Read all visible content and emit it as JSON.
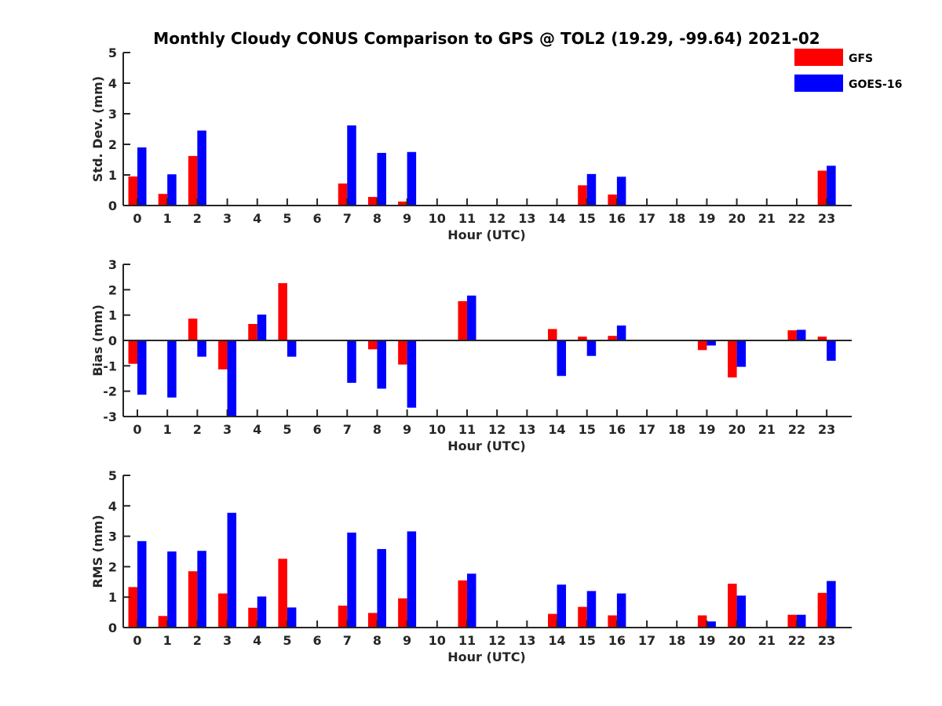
{
  "chart_data": {
    "type": "bar",
    "title": "Monthly Cloudy CONUS Comparison to GPS @ TOL2 (19.29, -99.64) 2021-02",
    "legend": {
      "placement": "top-right",
      "entries": [
        "GFS",
        "GOES-16"
      ]
    },
    "colors": {
      "GFS": "#ff0000",
      "GOES-16": "#0000ff"
    },
    "categories": [
      "0",
      "1",
      "2",
      "3",
      "4",
      "5",
      "6",
      "7",
      "8",
      "9",
      "10",
      "11",
      "12",
      "13",
      "14",
      "15",
      "16",
      "17",
      "18",
      "19",
      "20",
      "21",
      "22",
      "23"
    ],
    "panels": [
      {
        "xlabel": "Hour (UTC)",
        "ylabel": "Std. Dev. (mm)",
        "ylim": [
          0,
          5
        ],
        "yticks": [
          "0",
          "1",
          "2",
          "3",
          "4",
          "5"
        ],
        "series": [
          {
            "name": "GFS",
            "values": [
              0.95,
              0.38,
              1.62,
              null,
              null,
              null,
              null,
              0.72,
              0.28,
              0.13,
              null,
              null,
              null,
              null,
              null,
              0.66,
              0.36,
              null,
              null,
              null,
              null,
              null,
              null,
              1.14
            ]
          },
          {
            "name": "GOES-16",
            "values": [
              1.9,
              1.02,
              2.45,
              null,
              null,
              null,
              null,
              2.62,
              1.72,
              1.75,
              null,
              null,
              null,
              null,
              null,
              1.03,
              0.94,
              null,
              null,
              null,
              null,
              null,
              null,
              1.3
            ]
          }
        ]
      },
      {
        "xlabel": "Hour (UTC)",
        "ylabel": "Bias (mm)",
        "ylim": [
          -3,
          3
        ],
        "yticks": [
          "-3",
          "-2",
          "-1",
          "0",
          "1",
          "2",
          "3"
        ],
        "series": [
          {
            "name": "GFS",
            "values": [
              -0.92,
              null,
              0.86,
              -1.14,
              0.65,
              2.26,
              null,
              null,
              -0.35,
              -0.95,
              null,
              1.55,
              null,
              null,
              0.45,
              0.15,
              0.18,
              null,
              null,
              -0.38,
              -1.46,
              null,
              0.4,
              0.15
            ]
          },
          {
            "name": "GOES-16",
            "values": [
              -2.14,
              -2.25,
              -0.64,
              -3.0,
              1.02,
              -0.64,
              null,
              -1.67,
              -1.9,
              -2.65,
              null,
              1.77,
              null,
              null,
              -1.4,
              -0.61,
              0.59,
              null,
              null,
              -0.2,
              -1.04,
              null,
              0.42,
              -0.8
            ]
          }
        ]
      },
      {
        "xlabel": "Hour (UTC)",
        "ylabel": "RMS (mm)",
        "ylim": [
          0,
          5
        ],
        "yticks": [
          "0",
          "1",
          "2",
          "3",
          "4",
          "5"
        ],
        "series": [
          {
            "name": "GFS",
            "values": [
              1.33,
              0.38,
              1.85,
              1.12,
              0.65,
              2.26,
              null,
              0.72,
              0.48,
              0.96,
              null,
              1.55,
              null,
              null,
              0.45,
              0.68,
              0.4,
              null,
              null,
              0.4,
              1.44,
              null,
              0.42,
              1.14
            ]
          },
          {
            "name": "GOES-16",
            "values": [
              2.84,
              2.5,
              2.52,
              3.77,
              1.02,
              0.66,
              null,
              3.12,
              2.58,
              3.16,
              null,
              1.77,
              null,
              null,
              1.41,
              1.2,
              1.12,
              null,
              null,
              0.2,
              1.05,
              null,
              0.42,
              1.53
            ]
          }
        ]
      }
    ]
  }
}
